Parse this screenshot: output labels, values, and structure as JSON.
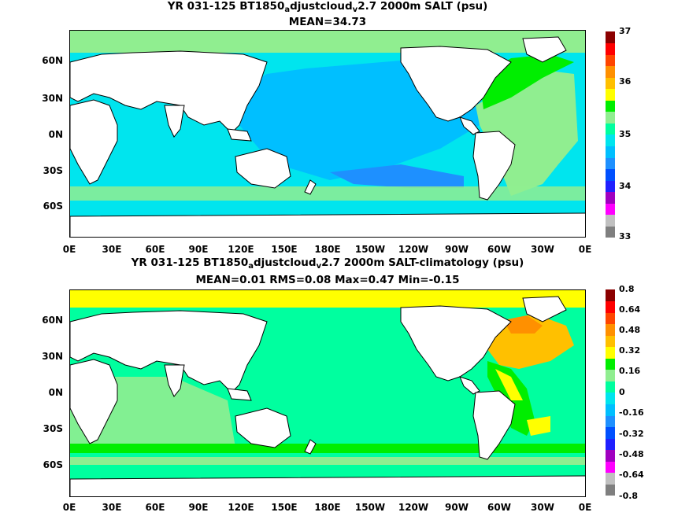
{
  "colors": {
    "land": "#ffffff",
    "coast": "#000000",
    "salt_pal": [
      "#7f7f7f",
      "#c0c0c0",
      "#ff00ff",
      "#a000c0",
      "#2020ff",
      "#0050ff",
      "#1e90ff",
      "#00bfff",
      "#00e5ee",
      "#00ff9f",
      "#90ee90",
      "#00ee00",
      "#ffff00",
      "#ffc000",
      "#ff9000",
      "#ff4500",
      "#ff0000",
      "#8b0000"
    ],
    "diff_pal": [
      "#7f7f7f",
      "#c0c0c0",
      "#ff00ff",
      "#a000c0",
      "#2020ff",
      "#0050ff",
      "#1e90ff",
      "#00bfff",
      "#00e5ee",
      "#00ff9f",
      "#90ee90",
      "#00ee00",
      "#ffff00",
      "#ffc000",
      "#ff9000",
      "#ff4500",
      "#ff0000",
      "#8b0000"
    ]
  },
  "top": {
    "title_pre": "YR 031-125 BT1850",
    "title_sub1": "a",
    "title_mid": "djustcloud",
    "title_sub2": "v",
    "title_post": "2.7 2000m SALT (psu)",
    "stats": "MEAN=34.73",
    "lat_ticks": [
      "60N",
      "30N",
      "0N",
      "30S",
      "60S"
    ],
    "lon_ticks": [
      "0E",
      "30E",
      "60E",
      "90E",
      "120E",
      "150E",
      "180E",
      "150W",
      "120W",
      "90W",
      "60W",
      "30W",
      "0E"
    ],
    "colorbar_labels": [
      "37",
      "36",
      "35",
      "34",
      "33"
    ]
  },
  "bottom": {
    "title_pre": "YR 031-125 BT1850",
    "title_sub1": "a",
    "title_mid": "djustcloud",
    "title_sub2": "v",
    "title_post": "2.7 2000m SALT-climatology (psu)",
    "stats": "MEAN=0.01   RMS=0.08   Max=0.47   Min=-0.15",
    "lat_ticks": [
      "60N",
      "30N",
      "0N",
      "30S",
      "60S"
    ],
    "lon_ticks": [
      "0E",
      "30E",
      "60E",
      "90E",
      "120E",
      "150E",
      "180E",
      "150W",
      "120W",
      "90W",
      "60W",
      "30W",
      "0E"
    ],
    "colorbar_labels": [
      "0.8",
      "0.64",
      "0.48",
      "0.32",
      "0.16",
      "0",
      "-0.16",
      "-0.32",
      "-0.48",
      "-0.64",
      "-0.8"
    ]
  }
}
